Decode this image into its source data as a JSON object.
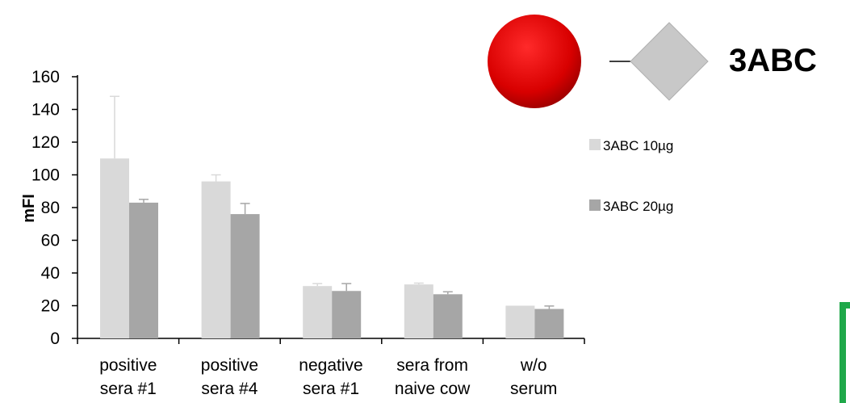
{
  "chart_data": {
    "type": "bar",
    "title": "3ABC",
    "ylabel": "mFI",
    "xlabel": "",
    "ylim": [
      0,
      160
    ],
    "yticks": [
      0,
      20,
      40,
      60,
      80,
      100,
      120,
      140,
      160
    ],
    "categories": [
      [
        "positive",
        "sera #1"
      ],
      [
        "positive",
        "sera #4"
      ],
      [
        "negative",
        "sera #1"
      ],
      [
        "sera from",
        "naive cow"
      ],
      [
        "w/o",
        "serum"
      ]
    ],
    "series": [
      {
        "name": "3ABC 10µg",
        "color": "#d9d9d9",
        "values": [
          110,
          96,
          32,
          33,
          20
        ],
        "errors": [
          38,
          4,
          1.5,
          0.8,
          0
        ]
      },
      {
        "name": "3ABC 20µg",
        "color": "#a6a6a6",
        "values": [
          83,
          76,
          29,
          27,
          18
        ],
        "errors": [
          2,
          6.5,
          4.5,
          1.5,
          1.8
        ]
      }
    ],
    "grid": false,
    "legend_position": "right"
  },
  "icon": {
    "circle_color": "#dd0000",
    "diamond_color": "#c8c8c8"
  },
  "decoration": {
    "right_edge_color": "#1fa84a"
  }
}
